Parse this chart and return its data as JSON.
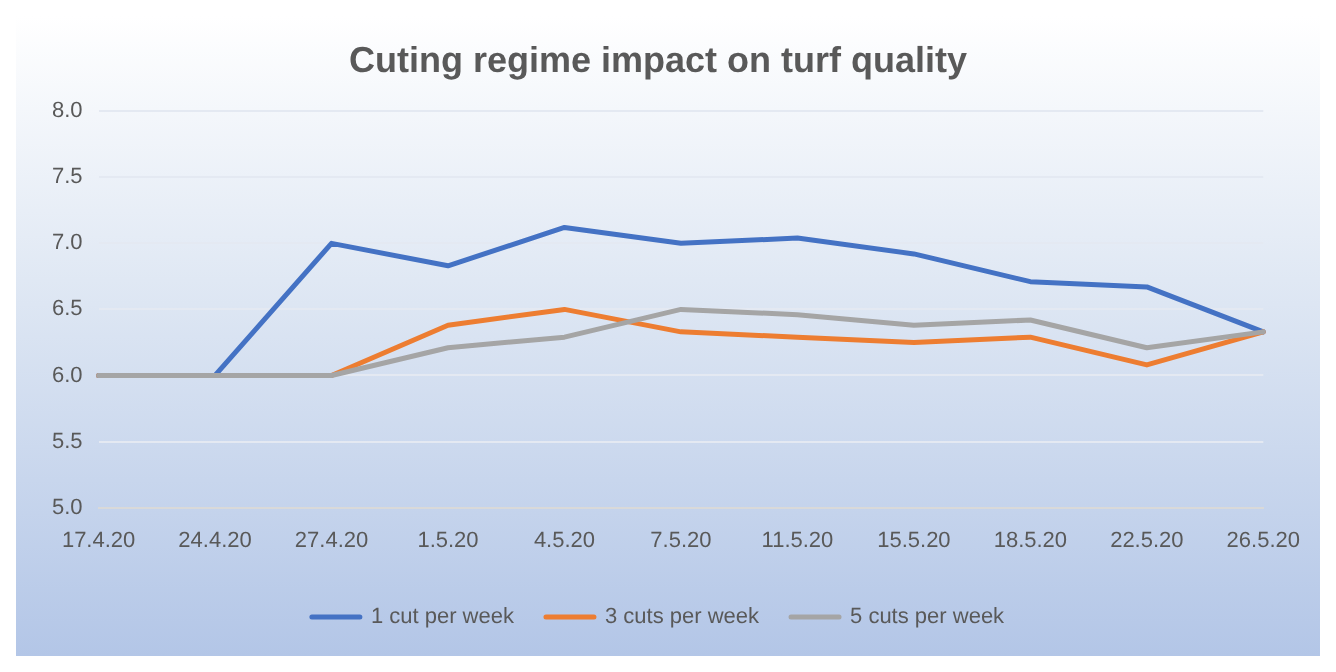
{
  "chart_data": {
    "type": "line",
    "title": "Cuting regime impact on turf quality",
    "categories": [
      "17.4.20",
      "24.4.20",
      "27.4.20",
      "1.5.20",
      "4.5.20",
      "7.5.20",
      "11.5.20",
      "15.5.20",
      "18.5.20",
      "22.5.20",
      "26.5.20"
    ],
    "series": [
      {
        "name": "1 cut per week",
        "color": "#4472c4",
        "values": [
          6.0,
          6.0,
          7.0,
          6.83,
          7.12,
          7.0,
          7.04,
          6.92,
          6.71,
          6.67,
          6.33
        ]
      },
      {
        "name": "3 cuts per week",
        "color": "#ed7d31",
        "values": [
          6.0,
          6.0,
          6.0,
          6.38,
          6.5,
          6.33,
          6.29,
          6.25,
          6.29,
          6.08,
          6.33
        ]
      },
      {
        "name": "5 cuts per week",
        "color": "#a5a5a5",
        "values": [
          6.0,
          6.0,
          6.0,
          6.21,
          6.29,
          6.5,
          6.46,
          6.38,
          6.42,
          6.21,
          6.33
        ]
      }
    ],
    "ylim": [
      5.0,
      8.0
    ],
    "yticks": [
      {
        "value": 5,
        "label": "5.0"
      },
      {
        "value": 5.5,
        "label": "5.5"
      },
      {
        "value": 6,
        "label": "6.0"
      },
      {
        "value": 6.5,
        "label": "6.5"
      },
      {
        "value": 7,
        "label": "7.0"
      },
      {
        "value": 7.5,
        "label": "7.5"
      },
      {
        "value": 8,
        "label": "8.0"
      }
    ],
    "grid": "y",
    "legend": "bottom",
    "marker": "none",
    "line_style": "solid"
  }
}
